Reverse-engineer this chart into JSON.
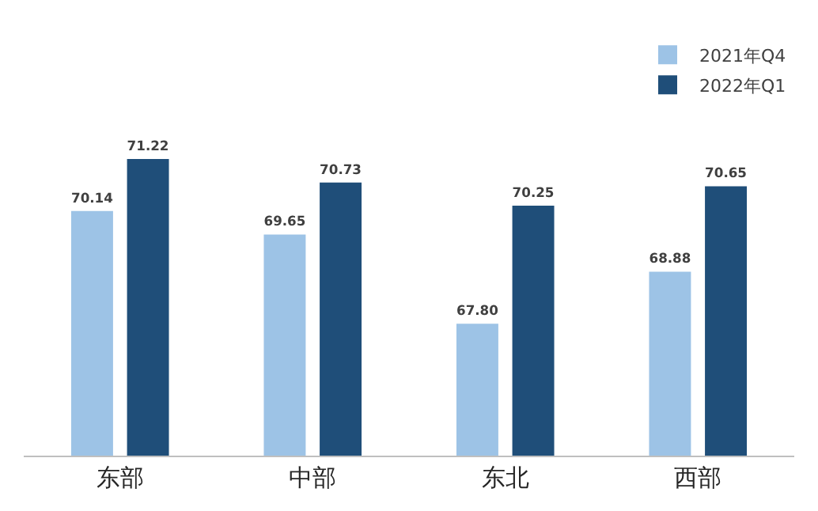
{
  "chart_data": {
    "type": "bar",
    "categories": [
      "东部",
      "中部",
      "东北",
      "西部"
    ],
    "series": [
      {
        "name": "2021年Q4",
        "color": "#9dc3e6",
        "values": [
          70.14,
          69.65,
          67.8,
          68.88
        ],
        "value_labels": [
          "70.14",
          "69.65",
          "67.80",
          "68.88"
        ]
      },
      {
        "name": "2022年Q1",
        "color": "#1f4e79",
        "values": [
          71.22,
          70.73,
          70.25,
          70.65
        ],
        "value_labels": [
          "71.22",
          "70.73",
          "70.25",
          "70.65"
        ]
      }
    ],
    "legend": "top right"
  }
}
